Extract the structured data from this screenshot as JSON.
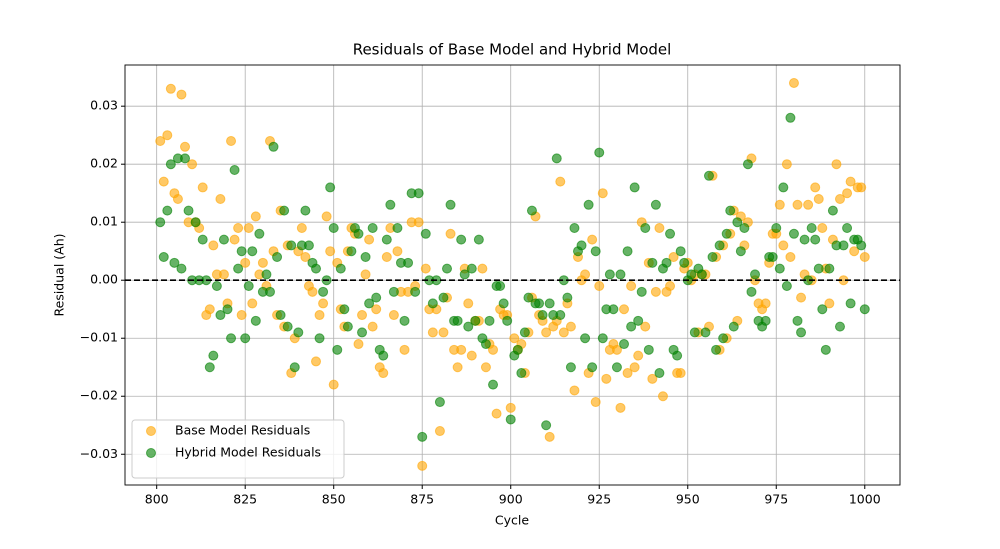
{
  "chart_data": {
    "type": "scatter",
    "title": "Residuals of Base Model and Hybrid Model",
    "x_label": "Cycle",
    "y_label": "Residual (Ah)",
    "x": [
      801,
      802,
      803,
      804,
      805,
      806,
      807,
      808,
      809,
      810,
      811,
      812,
      813,
      814,
      815,
      816,
      817,
      818,
      819,
      820,
      821,
      822,
      823,
      824,
      825,
      826,
      827,
      828,
      829,
      830,
      831,
      832,
      833,
      834,
      835,
      836,
      837,
      838,
      839,
      840,
      841,
      842,
      843,
      844,
      845,
      846,
      847,
      848,
      849,
      850,
      851,
      852,
      853,
      854,
      855,
      856,
      857,
      858,
      859,
      860,
      861,
      862,
      863,
      864,
      865,
      866,
      867,
      868,
      869,
      870,
      871,
      872,
      873,
      874,
      875,
      876,
      877,
      878,
      879,
      880,
      881,
      882,
      883,
      884,
      885,
      886,
      887,
      888,
      889,
      890,
      891,
      892,
      893,
      894,
      895,
      896,
      897,
      898,
      899,
      900,
      901,
      902,
      903,
      904,
      905,
      906,
      907,
      908,
      909,
      910,
      911,
      912,
      913,
      914,
      915,
      916,
      917,
      918,
      919,
      920,
      921,
      922,
      923,
      924,
      925,
      926,
      927,
      928,
      929,
      930,
      931,
      932,
      933,
      934,
      935,
      936,
      937,
      938,
      939,
      940,
      941,
      942,
      943,
      944,
      945,
      946,
      947,
      948,
      949,
      950,
      951,
      952,
      953,
      954,
      955,
      956,
      957,
      958,
      959,
      960,
      961,
      962,
      963,
      964,
      965,
      966,
      967,
      968,
      969,
      970,
      971,
      972,
      973,
      974,
      975,
      976,
      977,
      978,
      979,
      980,
      981,
      982,
      983,
      984,
      985,
      986,
      987,
      988,
      989,
      990,
      991,
      992,
      993,
      994,
      995,
      996,
      997,
      998,
      999,
      1000
    ],
    "series": [
      {
        "name": "Base Model Residuals",
        "color": "orange",
        "values": [
          0.024,
          0.017,
          0.025,
          0.033,
          0.015,
          0.014,
          0.032,
          0.023,
          0.01,
          0.02,
          0.01,
          0.009,
          0.016,
          -0.006,
          -0.005,
          0.006,
          0.001,
          0.014,
          0.001,
          -0.004,
          0.024,
          0.007,
          0.009,
          -0.006,
          0.003,
          0.009,
          -0.004,
          0.011,
          0.001,
          0.003,
          -0.001,
          0.024,
          0.005,
          -0.006,
          0.012,
          -0.008,
          0.006,
          -0.016,
          -0.01,
          0.005,
          0.009,
          0.004,
          -0.001,
          -0.002,
          -0.014,
          -0.006,
          -0.004,
          0.011,
          0.005,
          -0.018,
          0.003,
          -0.005,
          -0.008,
          0.005,
          0.009,
          0.008,
          -0.011,
          -0.006,
          0.001,
          0.007,
          -0.008,
          -0.005,
          -0.015,
          -0.016,
          0.004,
          0.009,
          -0.006,
          0.005,
          -0.002,
          -0.012,
          -0.002,
          0.01,
          -0.001,
          0.01,
          -0.032,
          0.002,
          -0.005,
          -0.009,
          -0.005,
          -0.026,
          -0.009,
          -0.003,
          0.008,
          -0.012,
          -0.015,
          -0.012,
          0.002,
          -0.004,
          -0.013,
          -0.007,
          -0.007,
          0.002,
          -0.015,
          -0.011,
          -0.012,
          -0.023,
          -0.005,
          -0.006,
          -0.006,
          -0.022,
          -0.01,
          -0.012,
          -0.011,
          -0.016,
          -0.009,
          -0.003,
          0.011,
          -0.006,
          -0.007,
          -0.009,
          -0.027,
          -0.008,
          -0.007,
          0.017,
          -0.009,
          -0.004,
          -0.008,
          -0.019,
          0.004,
          0.0,
          0.001,
          -0.016,
          0.007,
          -0.021,
          -0.001,
          0.015,
          -0.017,
          -0.012,
          -0.011,
          -0.012,
          -0.022,
          -0.005,
          -0.016,
          -0.001,
          -0.015,
          -0.013,
          0.01,
          -0.008,
          0.003,
          -0.017,
          -0.002,
          0.009,
          -0.02,
          -0.002,
          -0.001,
          0.004,
          -0.016,
          -0.016,
          0.002,
          0.003,
          0.0,
          0.001,
          -0.009,
          0.001,
          0.001,
          -0.008,
          0.018,
          0.004,
          -0.012,
          0.006,
          -0.01,
          0.008,
          0.012,
          -0.007,
          0.011,
          0.006,
          0.01,
          0.021,
          0.0,
          -0.004,
          -0.005,
          -0.004,
          0.003,
          0.008,
          0.008,
          0.013,
          0.006,
          0.02,
          0.004,
          0.034,
          0.013,
          -0.003,
          0.001,
          0.013,
          0.0,
          0.016,
          0.014,
          0.009,
          0.002,
          -0.004,
          0.007,
          0.02,
          0.014,
          0.0,
          0.015,
          0.017,
          0.005,
          0.016,
          0.016,
          0.004
        ]
      },
      {
        "name": "Hybrid Model Residuals",
        "color": "green",
        "values": [
          0.01,
          0.004,
          0.012,
          0.02,
          0.003,
          0.021,
          0.002,
          0.021,
          0.012,
          0.0,
          0.01,
          0.0,
          0.007,
          0.0,
          -0.015,
          -0.013,
          -0.001,
          -0.006,
          0.007,
          -0.005,
          -0.01,
          0.019,
          0.002,
          0.005,
          -0.01,
          -0.001,
          0.005,
          -0.007,
          0.008,
          -0.002,
          0.001,
          -0.002,
          0.023,
          0.004,
          -0.006,
          0.012,
          -0.008,
          0.006,
          -0.015,
          -0.009,
          0.006,
          0.012,
          0.006,
          0.003,
          0.002,
          -0.01,
          -0.002,
          0.0,
          0.016,
          0.009,
          -0.012,
          0.002,
          -0.005,
          -0.008,
          0.005,
          0.009,
          0.008,
          -0.009,
          0.004,
          -0.004,
          0.009,
          -0.003,
          -0.012,
          -0.013,
          0.007,
          0.013,
          -0.002,
          0.009,
          0.003,
          -0.007,
          0.003,
          0.015,
          -0.002,
          0.015,
          -0.027,
          0.008,
          0.0,
          -0.004,
          0.0,
          -0.021,
          -0.003,
          0.002,
          0.013,
          -0.007,
          -0.007,
          0.007,
          0.001,
          -0.008,
          0.002,
          -0.007,
          0.007,
          -0.01,
          -0.011,
          -0.007,
          -0.018,
          -0.001,
          -0.001,
          -0.004,
          -0.007,
          -0.024,
          -0.013,
          -0.012,
          -0.016,
          -0.009,
          -0.003,
          0.012,
          -0.004,
          -0.004,
          -0.006,
          -0.025,
          -0.004,
          -0.006,
          0.021,
          -0.006,
          0.0,
          -0.003,
          -0.015,
          0.009,
          0.005,
          0.006,
          -0.01,
          0.013,
          -0.015,
          0.005,
          0.022,
          -0.01,
          -0.005,
          0.001,
          -0.005,
          -0.015,
          0.001,
          -0.011,
          0.005,
          -0.008,
          0.016,
          -0.007,
          -0.002,
          0.009,
          -0.012,
          0.003,
          0.013,
          -0.016,
          0.002,
          0.003,
          0.008,
          -0.012,
          -0.013,
          0.005,
          0.003,
          0.0,
          0.001,
          -0.009,
          0.002,
          0.001,
          -0.009,
          0.018,
          0.004,
          -0.012,
          0.006,
          -0.01,
          0.008,
          0.012,
          -0.008,
          0.01,
          0.005,
          0.009,
          0.02,
          -0.002,
          0.001,
          -0.007,
          -0.008,
          -0.007,
          0.004,
          0.004,
          0.009,
          0.002,
          0.016,
          -0.001,
          0.028,
          0.008,
          -0.007,
          -0.009,
          0.007,
          0.0,
          0.009,
          0.007,
          0.002,
          -0.005,
          -0.012,
          0.002,
          0.012,
          0.006,
          -0.008,
          0.006,
          0.009,
          -0.004,
          0.007,
          0.007,
          0.006,
          -0.005
        ]
      }
    ],
    "xlim": [
      791.05,
      1009.95
    ],
    "ylim": [
      -0.0353,
      0.0371
    ],
    "xticks": [
      800,
      825,
      850,
      875,
      900,
      925,
      950,
      975,
      1000
    ],
    "yticks": [
      {
        "value": -0.03,
        "label": "−0.03"
      },
      {
        "value": -0.02,
        "label": "−0.02"
      },
      {
        "value": -0.01,
        "label": "−0.01"
      },
      {
        "value": 0,
        "label": "0.00"
      },
      0.01,
      0.02,
      0.03
    ],
    "hline": 0,
    "grid": true,
    "legend": "lower left"
  }
}
